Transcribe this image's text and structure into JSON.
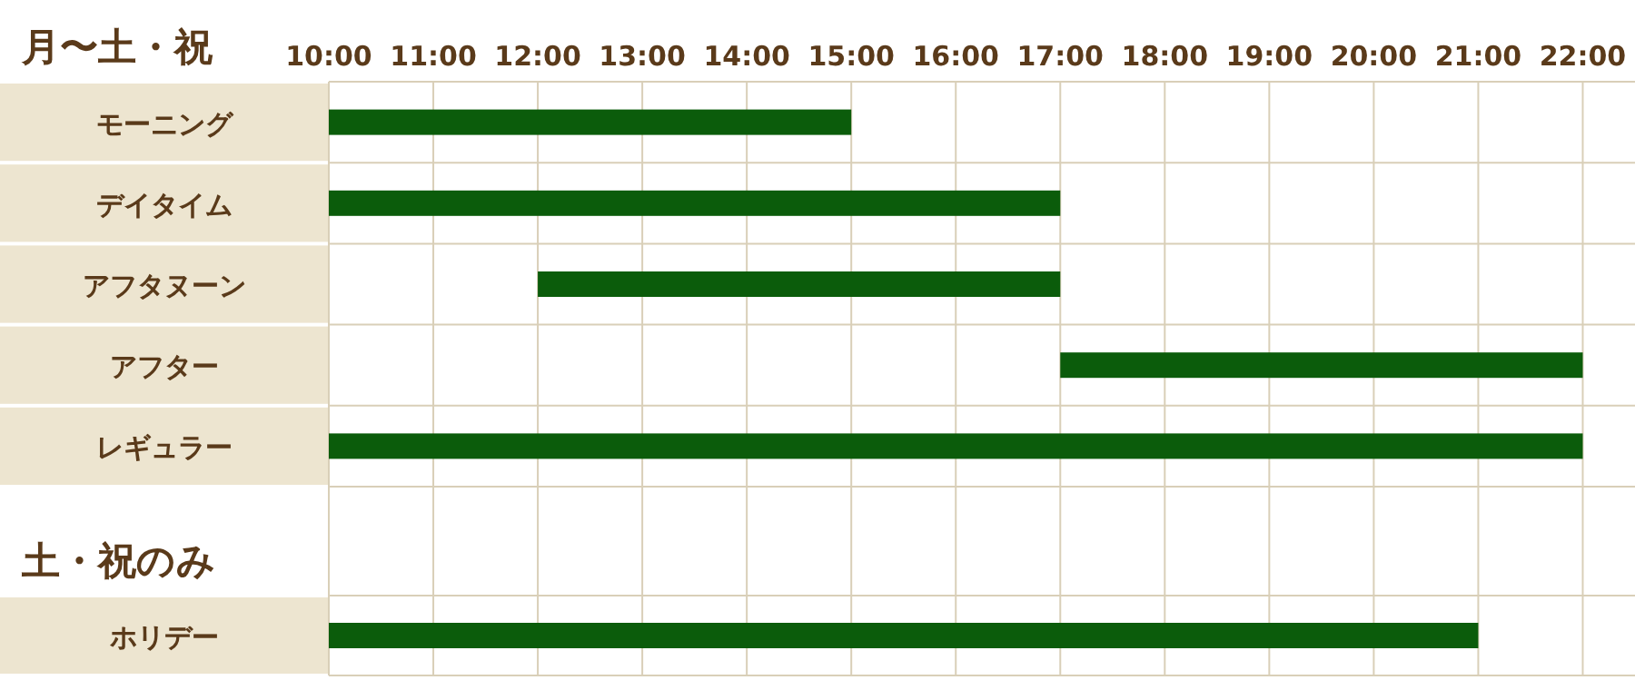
{
  "chart_data": [
    {
      "type": "bar",
      "orientation": "horizontal",
      "title": "月〜土・祝",
      "categories": [
        "モーニング",
        "デイタイム",
        "アフタヌーン",
        "アフター",
        "レギュラー"
      ],
      "base": [
        10,
        10,
        12,
        17,
        10
      ],
      "values": [
        5,
        7,
        5,
        5,
        12
      ],
      "color": "#0b5c0b",
      "xlim": [
        10,
        22.5
      ],
      "xticks": [
        {
          "value": 10,
          "label": "10:00"
        },
        {
          "value": 11,
          "label": "11:00"
        },
        {
          "value": 12,
          "label": "12:00"
        },
        {
          "value": 13,
          "label": "13:00"
        },
        {
          "value": 14,
          "label": "14:00"
        },
        {
          "value": 15,
          "label": "15:00"
        },
        {
          "value": 16,
          "label": "16:00"
        },
        {
          "value": 17,
          "label": "17:00"
        },
        {
          "value": 18,
          "label": "18:00"
        },
        {
          "value": 19,
          "label": "19:00"
        },
        {
          "value": 20,
          "label": "20:00"
        },
        {
          "value": 21,
          "label": "21:00"
        },
        {
          "value": 22,
          "label": "22:00"
        }
      ],
      "grid": true
    },
    {
      "type": "bar",
      "orientation": "horizontal",
      "title": "土・祝のみ",
      "categories": [
        "ホリデー"
      ],
      "base": [
        10
      ],
      "values": [
        11
      ],
      "color": "#0b5c0b",
      "xlim": [
        10,
        22.5
      ],
      "xticks": [
        {
          "value": 10,
          "label": null
        },
        {
          "value": 11,
          "label": null
        },
        {
          "value": 12,
          "label": null
        },
        {
          "value": 13,
          "label": null
        },
        {
          "value": 14,
          "label": null
        },
        {
          "value": 15,
          "label": null
        },
        {
          "value": 16,
          "label": null
        },
        {
          "value": 17,
          "label": null
        },
        {
          "value": 18,
          "label": null
        },
        {
          "value": 19,
          "label": null
        },
        {
          "value": 20,
          "label": null
        },
        {
          "value": 21,
          "label": null
        },
        {
          "value": 22,
          "label": null
        }
      ],
      "tick_labels": "y",
      "grid": true
    }
  ]
}
